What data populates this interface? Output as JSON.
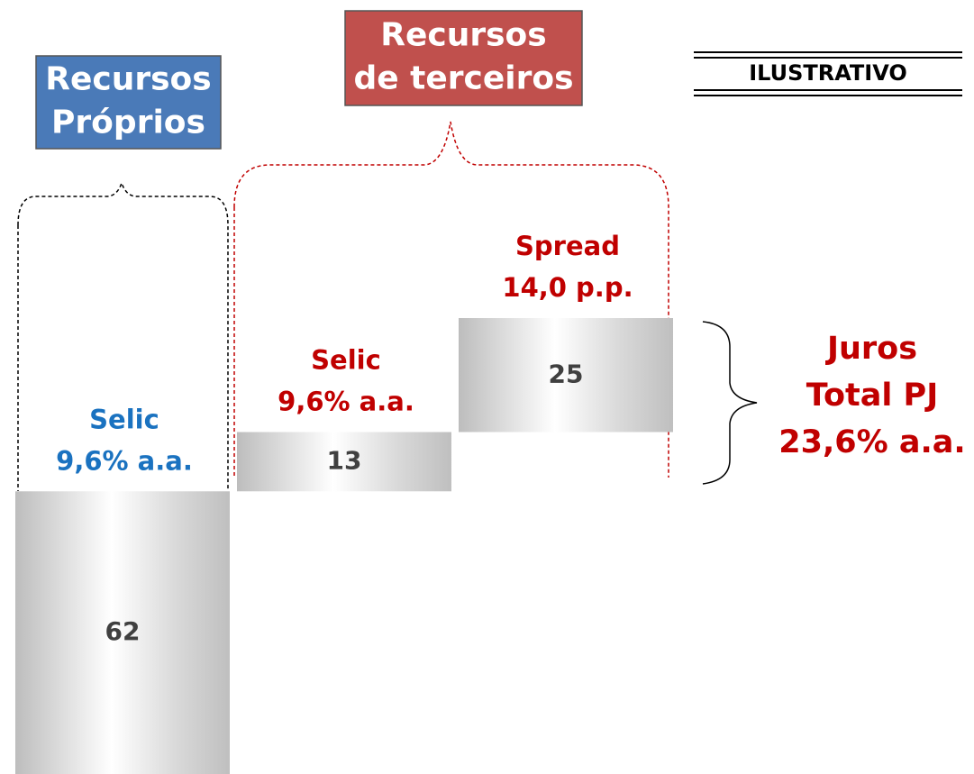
{
  "chart_data": {
    "type": "waterfall",
    "badges": [
      {
        "lines": [
          "Recursos",
          "Próprios"
        ],
        "color": "#4a7ab8"
      },
      {
        "lines": [
          "Recursos",
          "de terceiros"
        ],
        "color": "#c0504d"
      }
    ],
    "tag": "ILUSTRATIVO",
    "categories": [
      [
        "Selic",
        "9,6% a.a."
      ],
      [
        "Selic",
        "9,6% a.a."
      ],
      [
        "Spread",
        "14,0 p.p."
      ]
    ],
    "category_colors": [
      "#1a72c0",
      "#c00000",
      "#c00000"
    ],
    "values": [
      62,
      13,
      25
    ],
    "ylim": [
      0,
      100
    ],
    "annotation": {
      "lines": [
        "Juros",
        "Total PJ",
        "23,6% a.a."
      ],
      "color": "#c00000"
    }
  }
}
